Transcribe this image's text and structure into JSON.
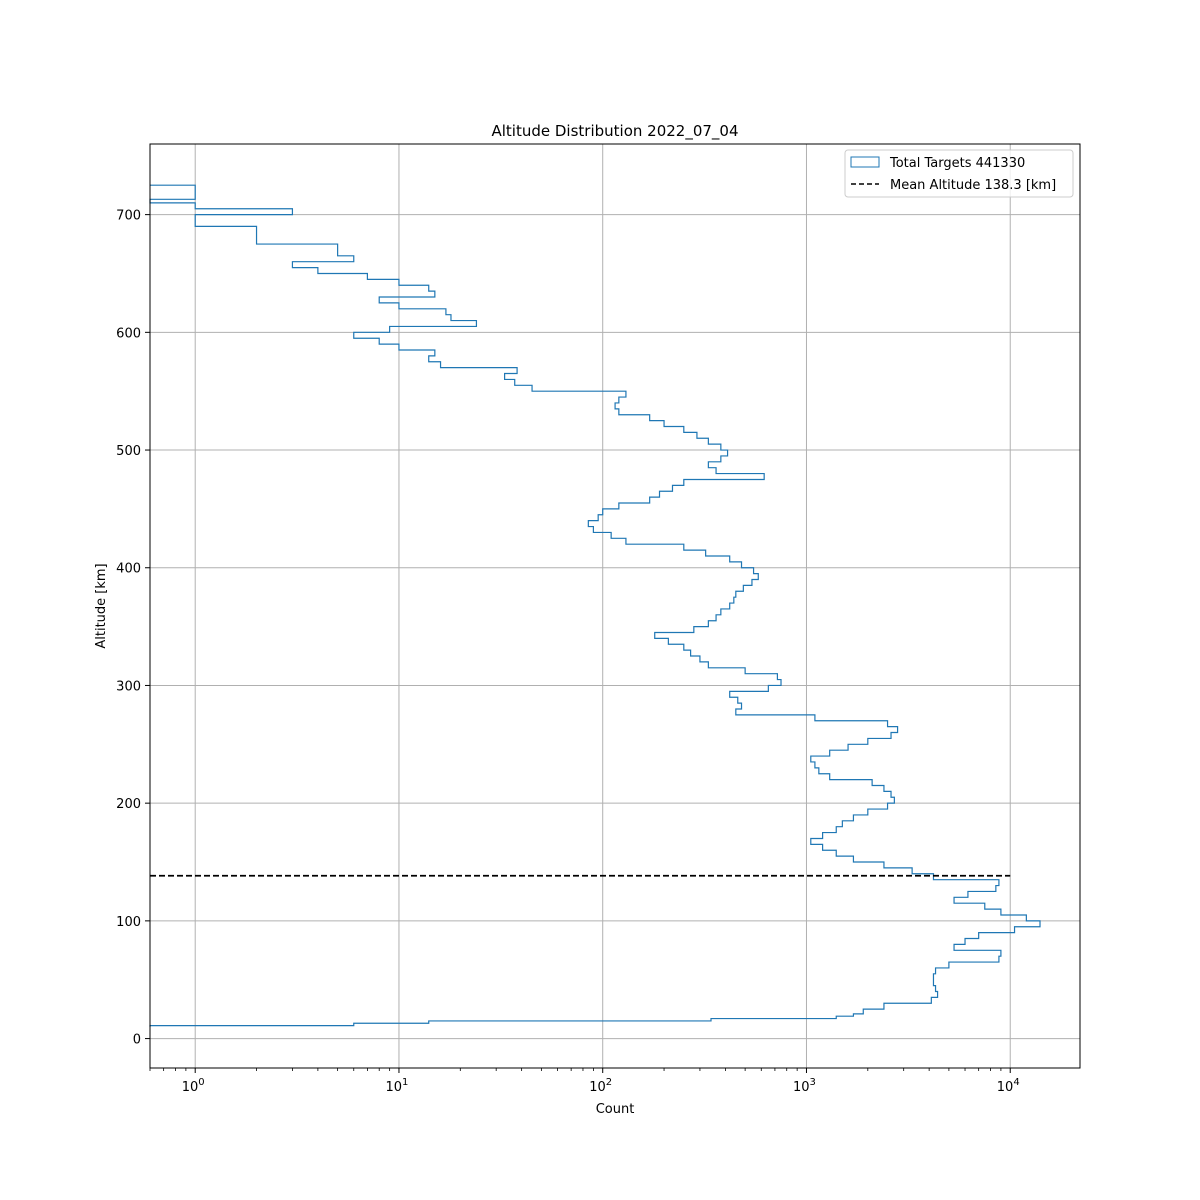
{
  "chart_data": {
    "type": "histogram",
    "orientation": "horizontal",
    "title": "Altitude Distribution 2022_07_04",
    "xlabel": "Count",
    "ylabel": "Altitude [km]",
    "x_scale": "log",
    "xlim": [
      0.6,
      22000
    ],
    "ylim": [
      -25,
      760
    ],
    "x_ticks": [
      {
        "value": 1,
        "base": "10",
        "exp": "0"
      },
      {
        "value": 10,
        "base": "10",
        "exp": "1"
      },
      {
        "value": 100,
        "base": "10",
        "exp": "2"
      },
      {
        "value": 1000,
        "base": "10",
        "exp": "3"
      },
      {
        "value": 10000,
        "base": "10",
        "exp": "4"
      }
    ],
    "y_ticks": [
      0,
      100,
      200,
      300,
      400,
      500,
      600,
      700
    ],
    "grid": true,
    "legend_position": "top-right",
    "colors": {
      "histogram": "#1f77b4",
      "mean_line": "#000000",
      "grid": "#b0b0b0"
    },
    "series": [
      {
        "name": "Total Targets 441330",
        "style": "step-outline",
        "profile": [
          [
            10,
            0.6
          ],
          [
            11,
            6
          ],
          [
            13,
            14
          ],
          [
            15,
            340
          ],
          [
            17,
            1400
          ],
          [
            19,
            1700
          ],
          [
            21,
            1900
          ],
          [
            25,
            2400
          ],
          [
            30,
            4100
          ],
          [
            35,
            4400
          ],
          [
            40,
            4300
          ],
          [
            45,
            4200
          ],
          [
            50,
            4200
          ],
          [
            55,
            4300
          ],
          [
            60,
            5000
          ],
          [
            65,
            8800
          ],
          [
            70,
            9000
          ],
          [
            75,
            5300
          ],
          [
            80,
            6000
          ],
          [
            85,
            7000
          ],
          [
            90,
            10500
          ],
          [
            95,
            14000
          ],
          [
            100,
            12000
          ],
          [
            105,
            9000
          ],
          [
            110,
            7500
          ],
          [
            115,
            5300
          ],
          [
            120,
            6200
          ],
          [
            125,
            8500
          ],
          [
            130,
            8800
          ],
          [
            135,
            4200
          ],
          [
            140,
            3300
          ],
          [
            145,
            2400
          ],
          [
            150,
            1700
          ],
          [
            155,
            1400
          ],
          [
            160,
            1200
          ],
          [
            165,
            1050
          ],
          [
            170,
            1200
          ],
          [
            175,
            1400
          ],
          [
            180,
            1500
          ],
          [
            185,
            1700
          ],
          [
            190,
            2000
          ],
          [
            195,
            2500
          ],
          [
            200,
            2700
          ],
          [
            205,
            2600
          ],
          [
            210,
            2400
          ],
          [
            215,
            2100
          ],
          [
            220,
            1300
          ],
          [
            225,
            1150
          ],
          [
            230,
            1100
          ],
          [
            235,
            1050
          ],
          [
            240,
            1300
          ],
          [
            245,
            1600
          ],
          [
            250,
            2000
          ],
          [
            255,
            2600
          ],
          [
            260,
            2800
          ],
          [
            265,
            2500
          ],
          [
            270,
            1100
          ],
          [
            275,
            450
          ],
          [
            280,
            480
          ],
          [
            285,
            460
          ],
          [
            290,
            420
          ],
          [
            295,
            650
          ],
          [
            300,
            750
          ],
          [
            305,
            720
          ],
          [
            310,
            500
          ],
          [
            315,
            330
          ],
          [
            320,
            300
          ],
          [
            325,
            270
          ],
          [
            330,
            250
          ],
          [
            335,
            210
          ],
          [
            340,
            180
          ],
          [
            345,
            280
          ],
          [
            350,
            330
          ],
          [
            355,
            360
          ],
          [
            360,
            380
          ],
          [
            365,
            420
          ],
          [
            370,
            440
          ],
          [
            375,
            450
          ],
          [
            380,
            490
          ],
          [
            385,
            540
          ],
          [
            390,
            580
          ],
          [
            395,
            550
          ],
          [
            400,
            480
          ],
          [
            405,
            420
          ],
          [
            410,
            320
          ],
          [
            415,
            250
          ],
          [
            420,
            130
          ],
          [
            425,
            110
          ],
          [
            430,
            90
          ],
          [
            435,
            85
          ],
          [
            440,
            95
          ],
          [
            445,
            100
          ],
          [
            450,
            120
          ],
          [
            455,
            170
          ],
          [
            460,
            190
          ],
          [
            465,
            220
          ],
          [
            470,
            250
          ],
          [
            475,
            620
          ],
          [
            480,
            360
          ],
          [
            485,
            330
          ],
          [
            490,
            380
          ],
          [
            495,
            410
          ],
          [
            500,
            380
          ],
          [
            505,
            330
          ],
          [
            510,
            290
          ],
          [
            515,
            250
          ],
          [
            520,
            200
          ],
          [
            525,
            170
          ],
          [
            530,
            120
          ],
          [
            535,
            115
          ],
          [
            540,
            120
          ],
          [
            545,
            130
          ],
          [
            550,
            45
          ],
          [
            555,
            37
          ],
          [
            560,
            33
          ],
          [
            565,
            38
          ],
          [
            570,
            16
          ],
          [
            575,
            14
          ],
          [
            580,
            15
          ],
          [
            585,
            10
          ],
          [
            590,
            8
          ],
          [
            595,
            6
          ],
          [
            600,
            9
          ],
          [
            605,
            24
          ],
          [
            610,
            18
          ],
          [
            615,
            17
          ],
          [
            620,
            10
          ],
          [
            625,
            8
          ],
          [
            630,
            15
          ],
          [
            635,
            14
          ],
          [
            640,
            10
          ],
          [
            645,
            7
          ],
          [
            650,
            4
          ],
          [
            655,
            3
          ],
          [
            660,
            6
          ],
          [
            665,
            5
          ],
          [
            670,
            5
          ],
          [
            675,
            2
          ],
          [
            680,
            2
          ],
          [
            685,
            2
          ],
          [
            690,
            1
          ],
          [
            695,
            1
          ],
          [
            700,
            3
          ],
          [
            705,
            1
          ],
          [
            710,
            0.6
          ],
          [
            713,
            1
          ],
          [
            718,
            1
          ],
          [
            722,
            1
          ],
          [
            725,
            0.6
          ]
        ]
      },
      {
        "name": "Mean Altitude 138.3 [km]",
        "style": "dashed-line",
        "y": 138.3,
        "x_range": [
          0.6,
          10000
        ]
      }
    ]
  }
}
